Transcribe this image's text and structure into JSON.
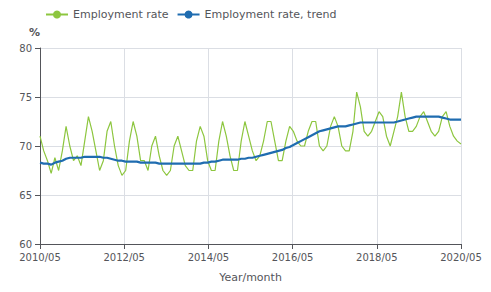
{
  "chart_data": {
    "type": "line",
    "xlabel": "Year/month",
    "ylabel": "%",
    "x": [
      0,
      1,
      2,
      3,
      4,
      5,
      6,
      7,
      8,
      9,
      10,
      11,
      12,
      13,
      14,
      15,
      16,
      17,
      18,
      19,
      20,
      21,
      22,
      23,
      24,
      25,
      26,
      27,
      28,
      29,
      30,
      31,
      32,
      33,
      34,
      35,
      36,
      37,
      38,
      39,
      40,
      41,
      42,
      43,
      44,
      45,
      46,
      47,
      48,
      49,
      50,
      51,
      52,
      53,
      54,
      55,
      56,
      57,
      58,
      59,
      60,
      61,
      62,
      63,
      64,
      65,
      66,
      67,
      68,
      69,
      70,
      71,
      72,
      73,
      74,
      75,
      76,
      77,
      78,
      79,
      80,
      81,
      82,
      83,
      84,
      85,
      86,
      87,
      88,
      89,
      90,
      91,
      92,
      93,
      94,
      95,
      96,
      97,
      98,
      99,
      100,
      101,
      102,
      103,
      104,
      105,
      106,
      107,
      108,
      109,
      110,
      111,
      112,
      113
    ],
    "xlim": [
      0,
      113
    ],
    "xticks": [
      {
        "value": 0,
        "label": "2010/05"
      },
      {
        "value": 22.6,
        "label": "2012/05"
      },
      {
        "value": 45.2,
        "label": "2014/05"
      },
      {
        "value": 67.8,
        "label": "2016/05"
      },
      {
        "value": 90.4,
        "label": "2018/05"
      },
      {
        "value": 113,
        "label": "2020/05"
      }
    ],
    "ylim": [
      60,
      80
    ],
    "yticks": [
      60,
      65,
      70,
      75,
      80
    ],
    "grid": true,
    "legend": "upper left",
    "series": [
      {
        "name": "Employment rate",
        "color": "#8DC63F",
        "values": [
          71.0,
          69.5,
          68.5,
          67.2,
          68.8,
          67.5,
          69.5,
          72.0,
          70.0,
          68.5,
          69.0,
          68.0,
          70.5,
          73.0,
          71.5,
          69.5,
          67.5,
          68.5,
          71.5,
          72.5,
          70.0,
          68.0,
          67.0,
          67.5,
          70.5,
          72.5,
          71.0,
          68.5,
          68.5,
          67.5,
          70.0,
          71.0,
          69.0,
          67.5,
          67.0,
          67.5,
          70.0,
          71.0,
          69.5,
          68.0,
          67.5,
          67.5,
          70.5,
          72.0,
          71.0,
          68.5,
          67.5,
          67.5,
          70.5,
          72.5,
          71.0,
          69.0,
          67.5,
          67.5,
          70.5,
          72.5,
          71.0,
          69.5,
          68.5,
          69.0,
          70.5,
          72.5,
          72.5,
          70.5,
          68.5,
          68.5,
          70.5,
          72.0,
          71.5,
          70.5,
          70.0,
          70.0,
          71.5,
          72.5,
          72.5,
          70.0,
          69.5,
          70.0,
          72.0,
          73.0,
          72.0,
          70.0,
          69.5,
          69.5,
          71.5,
          75.5,
          74.0,
          71.5,
          71.0,
          71.5,
          72.5,
          73.5,
          73.0,
          71.0,
          70.0,
          71.5,
          73.0,
          75.5,
          73.0,
          71.5,
          71.5,
          72.0,
          73.0,
          73.5,
          72.5,
          71.5,
          71.0,
          71.5,
          73.0,
          73.5,
          72.0,
          71.0,
          70.5,
          70.2
        ]
      },
      {
        "name": "Employment rate, trend",
        "color": "#1F6CB0",
        "values": [
          68.3,
          68.2,
          68.2,
          68.1,
          68.3,
          68.4,
          68.5,
          68.7,
          68.8,
          68.8,
          68.8,
          68.8,
          68.9,
          68.9,
          68.9,
          68.9,
          68.9,
          68.8,
          68.8,
          68.7,
          68.6,
          68.5,
          68.5,
          68.4,
          68.4,
          68.4,
          68.4,
          68.3,
          68.3,
          68.3,
          68.3,
          68.3,
          68.2,
          68.2,
          68.2,
          68.2,
          68.2,
          68.2,
          68.2,
          68.2,
          68.2,
          68.2,
          68.2,
          68.2,
          68.3,
          68.3,
          68.4,
          68.4,
          68.5,
          68.6,
          68.6,
          68.6,
          68.6,
          68.6,
          68.7,
          68.7,
          68.8,
          68.8,
          68.9,
          69.0,
          69.1,
          69.2,
          69.3,
          69.4,
          69.5,
          69.6,
          69.8,
          69.9,
          70.1,
          70.3,
          70.5,
          70.7,
          70.9,
          71.1,
          71.3,
          71.5,
          71.6,
          71.7,
          71.8,
          71.9,
          72.0,
          72.0,
          72.0,
          72.1,
          72.2,
          72.3,
          72.4,
          72.4,
          72.4,
          72.4,
          72.4,
          72.4,
          72.4,
          72.4,
          72.4,
          72.4,
          72.5,
          72.6,
          72.7,
          72.8,
          72.9,
          73.0,
          73.0,
          73.0,
          73.0,
          73.0,
          73.0,
          73.0,
          72.9,
          72.8,
          72.7,
          72.7,
          72.7,
          72.7
        ]
      }
    ]
  }
}
